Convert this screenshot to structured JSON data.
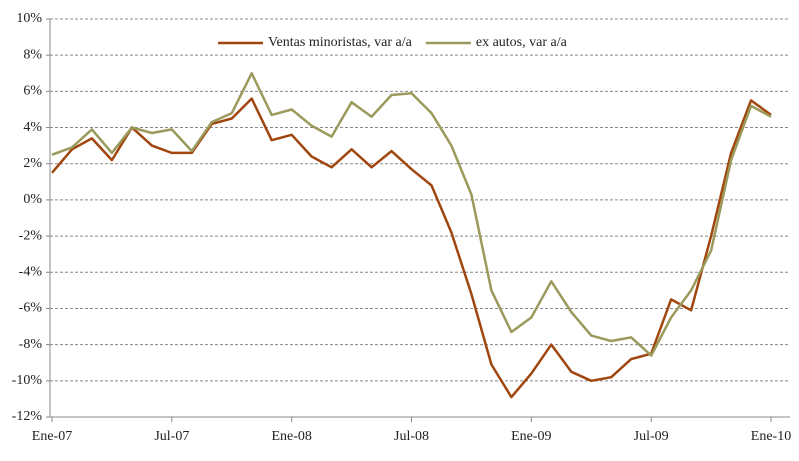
{
  "chart_data": {
    "type": "line",
    "categories": [
      "Ene-07",
      null,
      null,
      null,
      null,
      null,
      "Jul-07",
      null,
      null,
      null,
      null,
      null,
      "Ene-08",
      null,
      null,
      null,
      null,
      null,
      "Jul-08",
      null,
      null,
      null,
      null,
      null,
      "Ene-09",
      null,
      null,
      null,
      null,
      null,
      "Jul-09",
      null,
      null,
      null,
      null,
      null,
      "Ene-10"
    ],
    "series": [
      {
        "name": "Ventas minoristas, var a/a",
        "color": "#a0460f",
        "values": [
          1.5,
          2.8,
          3.4,
          2.2,
          4.0,
          3.0,
          2.6,
          2.6,
          4.2,
          4.5,
          5.6,
          3.3,
          3.6,
          2.4,
          1.8,
          2.8,
          1.8,
          2.7,
          1.7,
          0.8,
          -1.8,
          -5.2,
          -9.1,
          -10.9,
          -9.6,
          -8.0,
          -9.5,
          -10.0,
          -9.8,
          -8.8,
          -8.5,
          -5.5,
          -6.1,
          -2.0,
          2.6,
          5.5,
          4.7
        ]
      },
      {
        "name": "ex autos, var a/a",
        "color": "#9b9a5c",
        "values": [
          2.5,
          2.9,
          3.9,
          2.6,
          4.0,
          3.7,
          3.9,
          2.7,
          4.3,
          4.8,
          7.0,
          4.7,
          5.0,
          4.1,
          3.5,
          5.4,
          4.6,
          5.8,
          5.9,
          4.8,
          3.0,
          0.3,
          -5.0,
          -7.3,
          -6.5,
          -4.5,
          -6.2,
          -7.5,
          -7.8,
          -7.6,
          -8.6,
          -6.5,
          -5.0,
          -2.8,
          2.2,
          5.2,
          4.6
        ]
      }
    ],
    "ylim": [
      -12,
      10
    ],
    "yticks": [
      {
        "value": -12,
        "label": "-12%"
      },
      {
        "value": -10,
        "label": "-10%"
      },
      {
        "value": -8,
        "label": "-8%"
      },
      {
        "value": -6,
        "label": "-6%"
      },
      {
        "value": -4,
        "label": "-4%"
      },
      {
        "value": -2,
        "label": "-2%"
      },
      {
        "value": 0,
        "label": "0%"
      },
      {
        "value": 2,
        "label": "2%"
      },
      {
        "value": 4,
        "label": "4%"
      },
      {
        "value": 6,
        "label": "6%"
      },
      {
        "value": 8,
        "label": "8%"
      },
      {
        "value": 10,
        "label": "10%"
      }
    ],
    "grid": true,
    "legend": "top"
  }
}
